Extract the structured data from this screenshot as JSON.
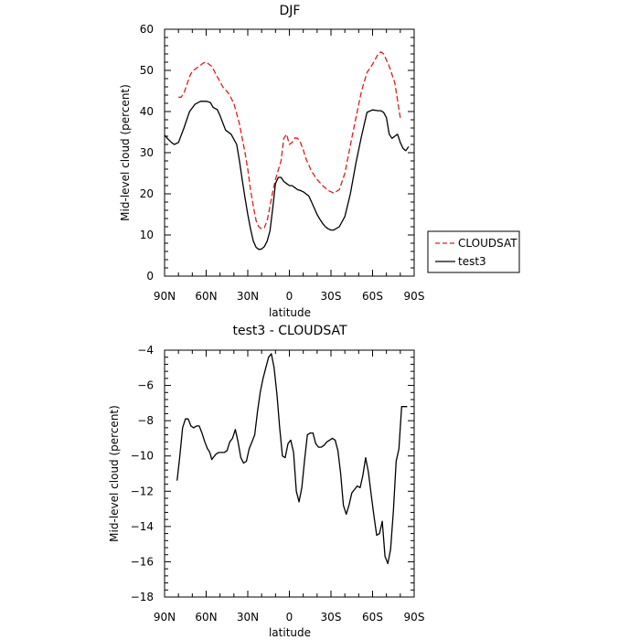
{
  "chart_data": [
    {
      "type": "line",
      "title": "DJF",
      "xlabel": "latitude",
      "ylabel": "Mid-level cloud (percent)",
      "xlim": [
        90,
        -90
      ],
      "ylim": [
        0,
        60
      ],
      "x_ticks": [
        90,
        60,
        30,
        0,
        -30,
        -60,
        -90
      ],
      "x_tick_labels": [
        "90N",
        "60N",
        "30N",
        "0",
        "30S",
        "60S",
        "90S"
      ],
      "y_ticks": [
        0,
        10,
        20,
        30,
        40,
        50,
        60
      ],
      "y_tick_labels": [
        "0",
        "10",
        "20",
        "30",
        "40",
        "50",
        "60"
      ],
      "legend_position": "right",
      "series": [
        {
          "name": "CLOUDSAT",
          "color": "#e41a1c",
          "dash": "dashed",
          "x": [
            80,
            78,
            76,
            74,
            72,
            70,
            66,
            62,
            60,
            56,
            52,
            48,
            44,
            40,
            36,
            32,
            30,
            28,
            26,
            24,
            22,
            20,
            18,
            16,
            14,
            12,
            10,
            8,
            6,
            4,
            2,
            0,
            -2,
            -4,
            -6,
            -8,
            -10,
            -12,
            -16,
            -20,
            -24,
            -28,
            -32,
            -36,
            -40,
            -44,
            -48,
            -52,
            -56,
            -60,
            -64,
            -66,
            -68,
            -70,
            -72,
            -76,
            -80
          ],
          "y": [
            43.5,
            43.5,
            44.5,
            46.5,
            48.5,
            49.8,
            50.8,
            51.8,
            52,
            51,
            48.5,
            46,
            44.5,
            42,
            37,
            30,
            26,
            21,
            17,
            13.5,
            12,
            11.5,
            11.8,
            13.5,
            17,
            20.5,
            23.5,
            25.8,
            28,
            33.5,
            34.5,
            32,
            32.5,
            33.6,
            33.5,
            32.5,
            30.7,
            28.5,
            25.5,
            23.5,
            22,
            20.8,
            20.2,
            21,
            25,
            31.8,
            38.5,
            45,
            49.5,
            51.5,
            54,
            54.5,
            54,
            52.5,
            51,
            47,
            38.5
          ]
        },
        {
          "name": "test3",
          "color": "#000000",
          "dash": "solid",
          "x": [
            90,
            88,
            85,
            83,
            80,
            76,
            72,
            68,
            64,
            60,
            57,
            55,
            52,
            50,
            46,
            42,
            38,
            36,
            34,
            32,
            30,
            28,
            26,
            24,
            22,
            20,
            18,
            16,
            14,
            12,
            10,
            8,
            6,
            4,
            2,
            0,
            -2,
            -4,
            -6,
            -8,
            -10,
            -12,
            -14,
            -16,
            -18,
            -20,
            -22,
            -24,
            -26,
            -28,
            -30,
            -32,
            -36,
            -40,
            -44,
            -48,
            -52,
            -56,
            -60,
            -64,
            -66,
            -68,
            -70,
            -72,
            -74,
            -76,
            -78,
            -80,
            -82,
            -84,
            -86
          ],
          "y": [
            34.3,
            33.5,
            32.5,
            32,
            32.5,
            36,
            40,
            41.8,
            42.5,
            42.5,
            42.2,
            41,
            40.5,
            39,
            35.5,
            34.5,
            32,
            28,
            23.5,
            19,
            15,
            11.5,
            8.5,
            7,
            6.5,
            6.6,
            7.2,
            8.5,
            11,
            16.5,
            22.5,
            24,
            24,
            23,
            22.5,
            22,
            22,
            21.5,
            21,
            20.8,
            20.5,
            20,
            19.5,
            18,
            16.5,
            15,
            13.8,
            12.8,
            12,
            11.5,
            11.2,
            11.2,
            12,
            14.5,
            20,
            27.5,
            34,
            39.8,
            40.4,
            40.2,
            40.2,
            39.8,
            38.5,
            34.5,
            33.5,
            34,
            34.5,
            32.5,
            31,
            30.5,
            31.5
          ]
        }
      ]
    },
    {
      "type": "line",
      "title": "test3 - CLOUDSAT",
      "xlabel": "latitude",
      "ylabel": "Mid-level cloud (percent)",
      "xlim": [
        90,
        -90
      ],
      "ylim": [
        -18,
        -4
      ],
      "x_ticks": [
        90,
        60,
        30,
        0,
        -30,
        -60,
        -90
      ],
      "x_tick_labels": [
        "90N",
        "60N",
        "30N",
        "0",
        "30S",
        "60S",
        "90S"
      ],
      "y_ticks": [
        -18,
        -16,
        -14,
        -12,
        -10,
        -8,
        -6,
        -4
      ],
      "y_tick_labels": [
        "−18",
        "−16",
        "−14",
        "−12",
        "−10",
        "−8",
        "−6",
        "−4"
      ],
      "series": [
        {
          "name": "",
          "color": "#000000",
          "dash": "solid",
          "x": [
            81,
            79,
            77,
            75,
            73,
            71,
            69,
            67,
            65,
            63,
            61,
            59,
            58,
            57,
            56,
            55,
            53,
            51,
            49,
            47,
            45,
            43,
            41,
            39,
            37,
            35,
            33,
            31,
            29,
            27,
            25,
            23,
            21,
            19,
            17,
            15,
            13,
            11,
            9,
            7,
            5,
            3,
            1,
            -1,
            -3,
            -5,
            -7,
            -9,
            -11,
            -13,
            -15,
            -17,
            -19,
            -21,
            -23,
            -25,
            -27,
            -29,
            -31,
            -33,
            -35,
            -37,
            -39,
            -41,
            -43,
            -45,
            -47,
            -49,
            -51,
            -53,
            -55,
            -57,
            -59,
            -61,
            -63,
            -65,
            -67,
            -69,
            -71,
            -73,
            -75,
            -77,
            -79,
            -81,
            -83,
            -85
          ],
          "y": [
            -11.4,
            -10,
            -8.4,
            -7.9,
            -7.9,
            -8.3,
            -8.4,
            -8.3,
            -8.3,
            -8.7,
            -9.2,
            -9.6,
            -9.7,
            -9.9,
            -10.2,
            -10.1,
            -9.9,
            -9.8,
            -9.8,
            -9.8,
            -9.7,
            -9.2,
            -9,
            -8.5,
            -9.2,
            -10.1,
            -10.4,
            -10.3,
            -9.6,
            -9.2,
            -8.8,
            -7.5,
            -6.4,
            -5.6,
            -5,
            -4.4,
            -4.2,
            -5,
            -6.5,
            -8.4,
            -10,
            -10.1,
            -9.3,
            -9.1,
            -9.8,
            -12,
            -12.6,
            -11.8,
            -10.2,
            -8.8,
            -8.7,
            -8.7,
            -9.3,
            -9.5,
            -9.5,
            -9.4,
            -9.2,
            -9.1,
            -9.0,
            -9.1,
            -9.7,
            -11.0,
            -12.8,
            -13.3,
            -12.8,
            -12.1,
            -11.9,
            -11.7,
            -11.8,
            -11.1,
            -10.1,
            -10.9,
            -12.2,
            -13.4,
            -14.5,
            -14.4,
            -13.7,
            -15.7,
            -16.1,
            -15.3,
            -13.1,
            -10.3,
            -9.6,
            -7.2,
            -7.2,
            -7.2
          ]
        }
      ]
    }
  ]
}
